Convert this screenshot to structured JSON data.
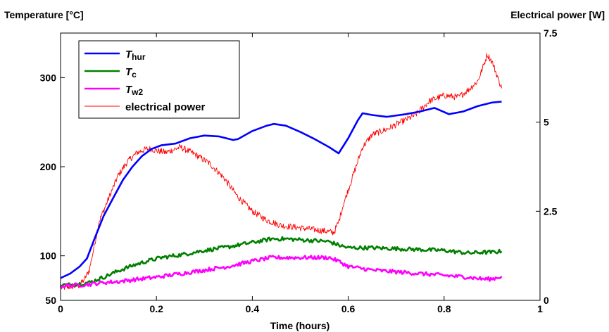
{
  "chart_data": {
    "type": "line",
    "xlabel": "Time  (hours)",
    "ylabel_left": "Temperature  [°C]",
    "ylabel_right": "Electrical power  [W]",
    "xlim": [
      0,
      1
    ],
    "ylim_left": [
      50,
      350
    ],
    "ylim_right": [
      0,
      7.5
    ],
    "xticks": [
      "0",
      "0.2",
      "0.4",
      "0.6",
      "0.8",
      "1"
    ],
    "xtick_values": [
      0,
      0.2,
      0.4,
      0.6,
      0.8,
      1
    ],
    "yticks_left": [
      "50",
      "100",
      "200",
      "300"
    ],
    "ytick_values_left": [
      50,
      100,
      200,
      300
    ],
    "yticks_right": [
      "0",
      "2.5",
      "5",
      "7.5"
    ],
    "ytick_values_right": [
      0,
      2.5,
      5,
      7.5
    ],
    "grid": false,
    "legend_position": "top-left",
    "series": [
      {
        "name": "T_hur",
        "legend_main": "T",
        "legend_sub": "hur",
        "axis": "left",
        "color": "#0000ff",
        "noise": 0,
        "x": [
          0,
          0.02,
          0.04,
          0.055,
          0.07,
          0.09,
          0.11,
          0.13,
          0.15,
          0.17,
          0.19,
          0.21,
          0.24,
          0.27,
          0.3,
          0.33,
          0.36,
          0.37,
          0.4,
          0.43,
          0.445,
          0.47,
          0.5,
          0.53,
          0.56,
          0.58,
          0.6,
          0.62,
          0.63,
          0.65,
          0.68,
          0.72,
          0.75,
          0.78,
          0.81,
          0.84,
          0.87,
          0.9,
          0.92
        ],
        "y": [
          75,
          80,
          88,
          97,
          118,
          145,
          165,
          185,
          200,
          212,
          220,
          224,
          226,
          232,
          235,
          234,
          230,
          231,
          240,
          246,
          248,
          246,
          239,
          231,
          222,
          215,
          232,
          252,
          260,
          258,
          256,
          259,
          262,
          266,
          259,
          262,
          268,
          272,
          273
        ]
      },
      {
        "name": "T_c",
        "legend_main": "T",
        "legend_sub": "c",
        "axis": "left",
        "color": "#008000",
        "noise": 2.2,
        "x": [
          0,
          0.03,
          0.06,
          0.09,
          0.12,
          0.15,
          0.18,
          0.21,
          0.25,
          0.3,
          0.35,
          0.4,
          0.44,
          0.47,
          0.5,
          0.53,
          0.56,
          0.58,
          0.6,
          0.65,
          0.7,
          0.75,
          0.8,
          0.85,
          0.88,
          0.9,
          0.92
        ],
        "y": [
          67,
          68,
          70,
          76,
          83,
          89,
          94,
          98,
          101,
          106,
          110,
          115,
          119,
          119,
          118,
          117,
          116,
          112,
          109,
          109,
          108,
          107,
          106,
          103,
          104,
          104,
          105
        ]
      },
      {
        "name": "T_w2",
        "legend_main": "T",
        "legend_sub": "w2",
        "axis": "left",
        "color": "#ff00ff",
        "noise": 2.2,
        "x": [
          0,
          0.03,
          0.06,
          0.09,
          0.12,
          0.15,
          0.2,
          0.25,
          0.3,
          0.35,
          0.4,
          0.44,
          0.47,
          0.5,
          0.53,
          0.56,
          0.58,
          0.6,
          0.65,
          0.7,
          0.75,
          0.8,
          0.85,
          0.88,
          0.9,
          0.92
        ],
        "y": [
          66,
          67,
          68,
          70,
          71,
          73,
          76,
          80,
          84,
          88,
          94,
          98,
          98,
          98,
          98,
          98,
          94,
          88,
          84,
          82,
          80,
          78,
          76,
          74,
          74,
          77
        ]
      },
      {
        "name": "electrical power",
        "legend_main": "electrical power",
        "legend_sub": "",
        "axis": "right",
        "color": "#ff0000",
        "noise": 0.09,
        "x": [
          0,
          0.02,
          0.04,
          0.05,
          0.06,
          0.07,
          0.08,
          0.1,
          0.12,
          0.14,
          0.16,
          0.18,
          0.19,
          0.2,
          0.22,
          0.25,
          0.28,
          0.31,
          0.34,
          0.37,
          0.4,
          0.43,
          0.46,
          0.49,
          0.52,
          0.55,
          0.57,
          0.58,
          0.59,
          0.61,
          0.63,
          0.65,
          0.68,
          0.71,
          0.74,
          0.77,
          0.8,
          0.83,
          0.85,
          0.87,
          0.88,
          0.89,
          0.9,
          0.92
        ],
        "y": [
          0.35,
          0.38,
          0.42,
          0.6,
          0.85,
          1.5,
          2.2,
          2.85,
          3.5,
          3.9,
          4.15,
          4.25,
          4.25,
          4.2,
          4.15,
          4.3,
          4.1,
          3.85,
          3.45,
          2.9,
          2.5,
          2.25,
          2.1,
          2.05,
          2.0,
          1.95,
          1.9,
          2.2,
          2.7,
          3.5,
          4.3,
          4.65,
          4.8,
          5.0,
          5.2,
          5.6,
          5.75,
          5.7,
          5.9,
          6.15,
          6.5,
          6.9,
          6.7,
          5.95
        ]
      }
    ]
  }
}
